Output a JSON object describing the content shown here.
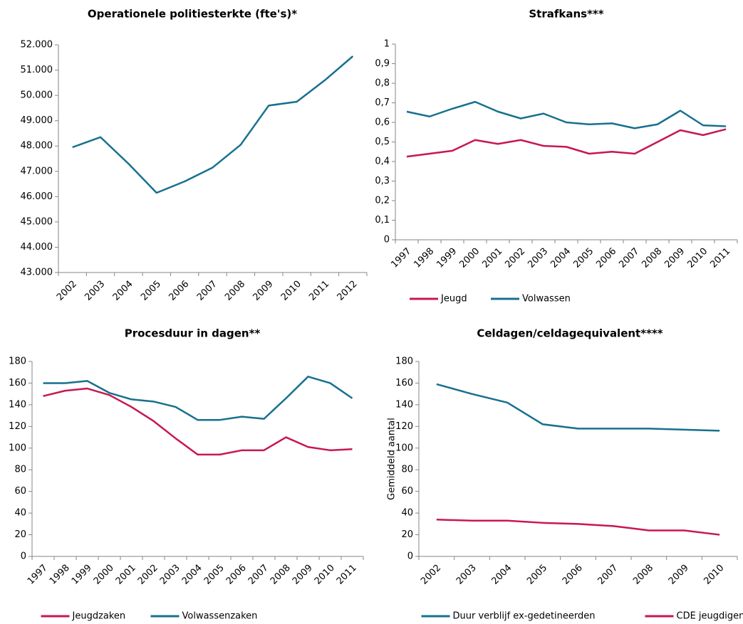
{
  "chart_data": [
    {
      "type": "line",
      "title": "Operationele politiesterkte  (fte's)*",
      "categories": [
        "2002",
        "2003",
        "2004",
        "2005",
        "2006",
        "2007",
        "2008",
        "2009",
        "2010",
        "2011",
        "2012"
      ],
      "series": [
        {
          "name": null,
          "color": "#17708f",
          "values": [
            47950,
            48350,
            47300,
            46150,
            46600,
            47150,
            48050,
            49600,
            49750,
            50600,
            51550
          ]
        }
      ],
      "ylim": [
        43000,
        52000
      ],
      "yticks": [
        {
          "value": 43000,
          "label": "43.000"
        },
        {
          "value": 44000,
          "label": "44.000"
        },
        {
          "value": 45000,
          "label": "45.000"
        },
        {
          "value": 46000,
          "label": "46.000"
        },
        {
          "value": 47000,
          "label": "47.000"
        },
        {
          "value": 48000,
          "label": "48.000"
        },
        {
          "value": 49000,
          "label": "49.000"
        },
        {
          "value": 50000,
          "label": "50.000"
        },
        {
          "value": 51000,
          "label": "51.000"
        },
        {
          "value": 52000,
          "label": "52.000"
        }
      ],
      "grid": false
    },
    {
      "type": "line",
      "title": "Strafkans***",
      "categories": [
        "1997",
        "1998",
        "1999",
        "2000",
        "2001",
        "2002",
        "2003",
        "2004",
        "2005",
        "2006",
        "2007",
        "2008",
        "2009",
        "2010",
        "2011"
      ],
      "series": [
        {
          "name": "Jeugd",
          "color": "#c8174f",
          "values": [
            0.425,
            0.44,
            0.455,
            0.51,
            0.49,
            0.51,
            0.48,
            0.475,
            0.44,
            0.45,
            0.44,
            0.5,
            0.56,
            0.535,
            0.565
          ]
        },
        {
          "name": "Volwassen",
          "color": "#17708f",
          "values": [
            0.655,
            0.63,
            0.67,
            0.705,
            0.655,
            0.62,
            0.645,
            0.6,
            0.59,
            0.595,
            0.57,
            0.59,
            0.66,
            0.585,
            0.58
          ]
        }
      ],
      "ylim": [
        0,
        1
      ],
      "yticks": [
        0,
        {
          "value": 0.1,
          "label": "0,1"
        },
        {
          "value": 0.2,
          "label": "0,2"
        },
        {
          "value": 0.3,
          "label": "0,3"
        },
        {
          "value": 0.4,
          "label": "0,4"
        },
        {
          "value": 0.5,
          "label": "0,5"
        },
        {
          "value": 0.6,
          "label": "0,6"
        },
        {
          "value": 0.7,
          "label": "0,7"
        },
        {
          "value": 0.8,
          "label": "0,8"
        },
        {
          "value": 0.9,
          "label": "0,9"
        },
        1
      ],
      "grid": false,
      "legend": "bottom"
    },
    {
      "type": "line",
      "title": "Procesduur in dagen**",
      "categories": [
        "1997",
        "1998",
        "1999",
        "2000",
        "2001",
        "2002",
        "2003",
        "2004",
        "2005",
        "2006",
        "2007",
        "2008",
        "2009",
        "2010",
        "2011"
      ],
      "series": [
        {
          "name": "Jeugdzaken",
          "color": "#c8174f",
          "values": [
            148,
            153,
            155,
            149,
            138,
            125,
            109,
            94,
            94,
            98,
            98,
            110,
            101,
            98,
            99
          ]
        },
        {
          "name": "Volwassenzaken",
          "color": "#17708f",
          "values": [
            160,
            160,
            162,
            151,
            145,
            143,
            138,
            126,
            126,
            129,
            127,
            146,
            166,
            160,
            146
          ]
        }
      ],
      "ylim": [
        0,
        180
      ],
      "yticks": [
        0,
        20,
        40,
        60,
        80,
        100,
        120,
        140,
        160,
        180
      ],
      "grid": false,
      "legend": "bottom"
    },
    {
      "type": "line",
      "title": "Celdagen/celdagequivalent****",
      "y_label": "Gemiddeld aantal",
      "categories": [
        "2002",
        "2003",
        "2004",
        "2005",
        "2006",
        "2007",
        "2008",
        "2009",
        "2010"
      ],
      "series": [
        {
          "name": "Duur verblijf ex-gedetineerden",
          "color": "#17708f",
          "values": [
            159,
            150,
            142,
            122,
            118,
            118,
            118,
            117,
            116
          ]
        },
        {
          "name": "CDE jeugdigen",
          "color": "#c8174f",
          "values": [
            34,
            33,
            33,
            31,
            30,
            28,
            24,
            24,
            20
          ]
        }
      ],
      "ylim": [
        0,
        180
      ],
      "yticks": [
        0,
        20,
        40,
        60,
        80,
        100,
        120,
        140,
        160,
        180
      ],
      "grid": false,
      "legend": "bottom"
    }
  ]
}
